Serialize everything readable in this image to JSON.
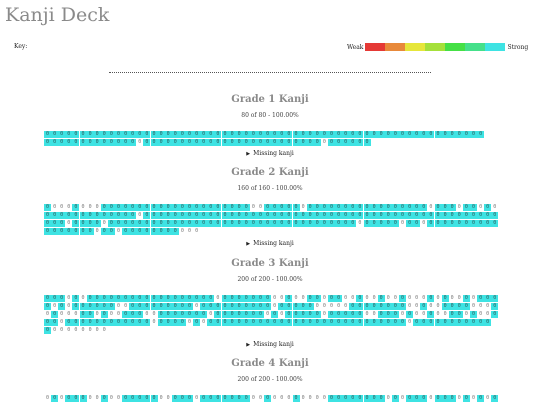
{
  "app_title": "Kanji Deck",
  "key_label": "Key:",
  "legend": {
    "weak_label": "Weak",
    "strong_label": "Strong",
    "colors": [
      "#e53935",
      "#e8893a",
      "#e6e63a",
      "#a5e03a",
      "#45e045",
      "#45e08a",
      "#3ee3e3"
    ]
  },
  "cell_glyph": "0",
  "missing_label": "Missing kanji",
  "grades": [
    {
      "title": "Grade 1 Kanji",
      "count": "80 of 80 - 100.00%",
      "rows": [
        "ssssssssssssssssssssssssssssssssssssssssssssssssssssssssssssss",
        "sssssssssssssbsssssssssssssssssssssssssbssssss"
      ]
    },
    {
      "title": "Grade 2 Kanji",
      "count": "160 of 160 - 100.00%",
      "rows": [
        "sbbbsbbbsssssssssssssssssssssbbsssssbsssssssssssssssssbsssbssbsb",
        "sssssssssssssbssssssssssssssssssssssssssssssssssssssssssssssssss",
        "sssbssssbsssssssssssssssssssssssssssssssssssbsssssbssbssssssssss",
        "sssssssbssbssssssssbbb"
      ]
    },
    {
      "title": "Grade 3 Kanji",
      "count": "200 of 200 - 100.00%",
      "rows": [
        "sssbsbssssssssssssssssssbsssssssbbsbbssbssbbsbbsbbsbbbsbsbbsbsss",
        "sbsbssssssbbsssssssssbssssssssssbsssssbbbbbssssssssbbsbbssssbbbs",
        "bsbbbssbsbbsssbbsssssssbsssssssbsbsssssbsssssbbsssbsbbsbbssbsbbs",
        "ssbssssssssssssbssssbsbssssssssssssssssssssssssssssbsssssssssss",
        "sbbbbbbbb"
      ]
    },
    {
      "title": "Grade 4 Kanji",
      "count": "200 of 200 - 100.00%",
      "rows": [
        "bsbsssbbsbbsssssbbsssbsssssssbbsbbbsbbbbssssssssbsbsssbsssbsbsbs"
      ]
    }
  ]
}
